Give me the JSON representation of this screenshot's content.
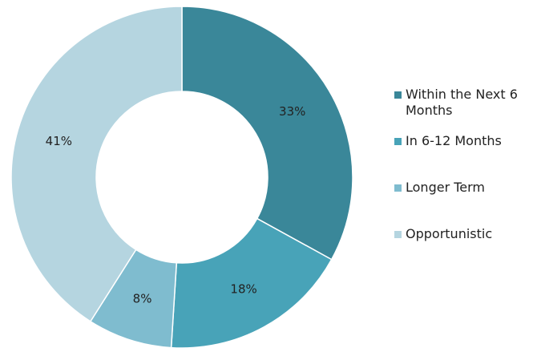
{
  "chart_data": {
    "type": "donut",
    "categories": [
      "Within the Next 6 Months",
      "In 6-12 Months",
      "Longer Term",
      "Opportunistic"
    ],
    "values": [
      33,
      18,
      8,
      41
    ],
    "value_labels": [
      "33%",
      "18%",
      "8%",
      "41%"
    ],
    "colors": [
      "#3a8799",
      "#48a3b8",
      "#7fbccf",
      "#b5d5e0"
    ],
    "legend": "right"
  }
}
